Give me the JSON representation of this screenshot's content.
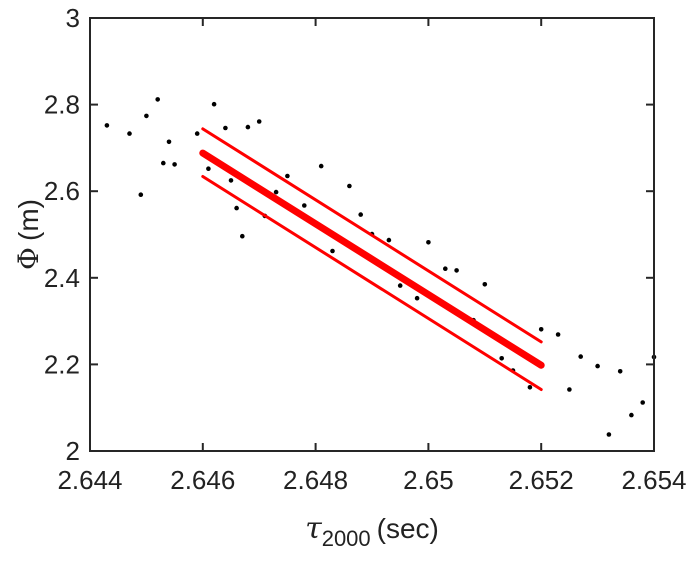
{
  "chart_data": {
    "type": "scatter",
    "title": "",
    "xlabel": {
      "symbol": "τ",
      "subscript": "2000",
      "unit": "(sec)"
    },
    "ylabel": {
      "symbol": "Φ",
      "unit": "(m)"
    },
    "xlim": [
      2.644,
      2.654
    ],
    "ylim": [
      2.0,
      3.0
    ],
    "xticks": [
      2.644,
      2.646,
      2.648,
      2.65,
      2.652,
      2.654
    ],
    "xtick_labels": [
      "2.644",
      "2.646",
      "2.648",
      "2.65",
      "2.652",
      "2.654"
    ],
    "yticks": [
      2.0,
      2.2,
      2.4,
      2.6,
      2.8,
      3.0
    ],
    "ytick_labels": [
      "2",
      "2.2",
      "2.4",
      "2.6",
      "2.8",
      "3"
    ],
    "grid": false,
    "scatter_color": "#000000",
    "line_color": "#ff0000",
    "scatter": {
      "x": [
        2.6443,
        2.6447,
        2.6449,
        2.645,
        2.6452,
        2.6453,
        2.6454,
        2.6455,
        2.6459,
        2.6461,
        2.6462,
        2.6464,
        2.6465,
        2.6466,
        2.6467,
        2.6468,
        2.647,
        2.6471,
        2.6473,
        2.6475,
        2.6478,
        2.6481,
        2.6483,
        2.6486,
        2.6488,
        2.649,
        2.6493,
        2.6495,
        2.6498,
        2.65,
        2.6503,
        2.6505,
        2.6508,
        2.651,
        2.6513,
        2.6515,
        2.6518,
        2.652,
        2.6523,
        2.6525,
        2.6527,
        2.653,
        2.6532,
        2.6534,
        2.6536,
        2.6538,
        2.654
      ],
      "y": [
        2.752,
        2.733,
        2.592,
        2.774,
        2.812,
        2.665,
        2.714,
        2.662,
        2.733,
        2.652,
        2.801,
        2.746,
        2.625,
        2.561,
        2.496,
        2.748,
        2.761,
        2.543,
        2.598,
        2.635,
        2.567,
        2.658,
        2.462,
        2.612,
        2.546,
        2.501,
        2.487,
        2.382,
        2.353,
        2.482,
        2.421,
        2.417,
        2.302,
        2.385,
        2.214,
        2.186,
        2.147,
        2.281,
        2.269,
        2.142,
        2.218,
        2.196,
        2.038,
        2.184,
        2.083,
        2.112,
        2.217
      ]
    },
    "lines": [
      {
        "x": [
          2.646,
          2.652
        ],
        "y": [
          2.688,
          2.198
        ],
        "style": "thick"
      },
      {
        "x": [
          2.646,
          2.652
        ],
        "y": [
          2.744,
          2.252
        ],
        "style": "thin"
      },
      {
        "x": [
          2.646,
          2.652
        ],
        "y": [
          2.634,
          2.142
        ],
        "style": "thin"
      }
    ]
  }
}
